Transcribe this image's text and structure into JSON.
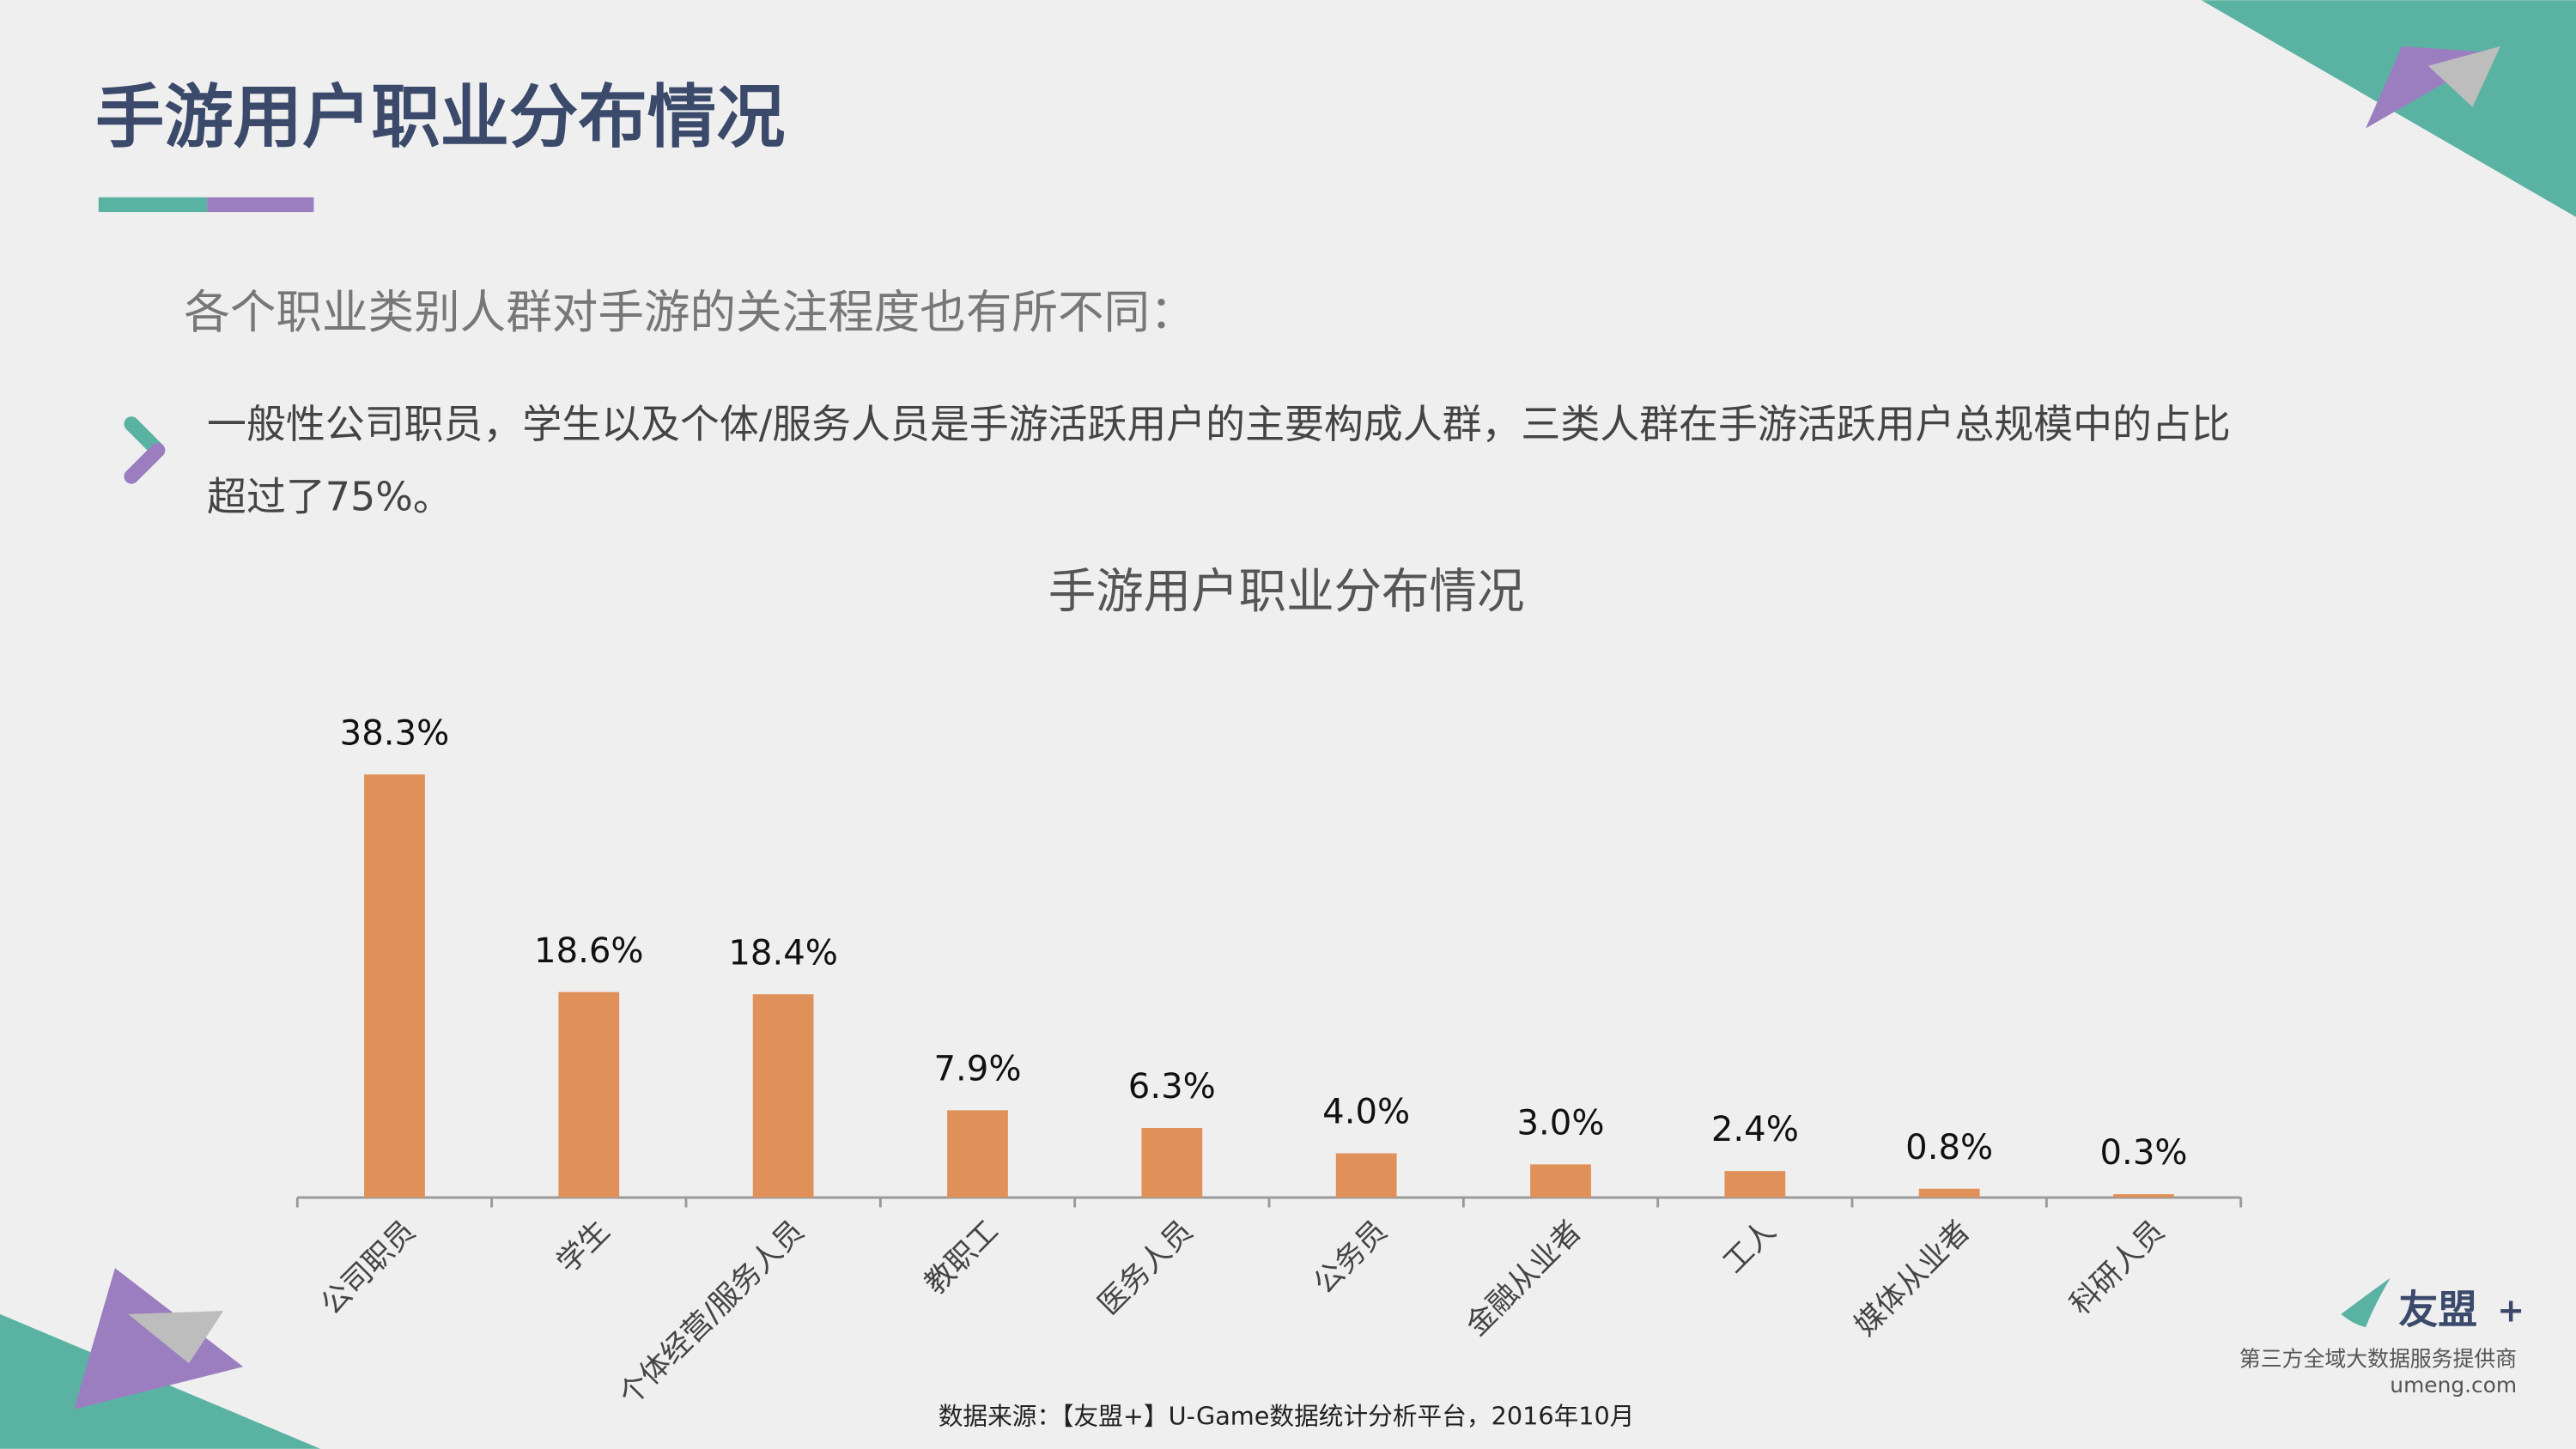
{
  "header": {
    "title": "手游用户职业分布情况"
  },
  "subtitle": "各个职业类别人群对手游的关注程度也有所不同：",
  "bullet": {
    "lines": [
      "一般性公司职员，学生以及个体/服务人员是手游活跃用户的主要构成人群，三类人群在手游活跃用户总规模中的占比",
      "超过了75%。"
    ]
  },
  "chart_data": {
    "type": "bar",
    "title": "手游用户职业分布情况",
    "categories": [
      "公司职员",
      "学生",
      "个体经营/服务人员",
      "教职工",
      "医务人员",
      "公务员",
      "金融从业者",
      "工人",
      "媒体从业者",
      "科研人员"
    ],
    "values": [
      38.3,
      18.6,
      18.4,
      7.9,
      6.3,
      4.0,
      3.0,
      2.4,
      0.8,
      0.3
    ],
    "value_labels": [
      "38.3%",
      "18.6%",
      "18.4%",
      "7.9%",
      "6.3%",
      "4.0%",
      "3.0%",
      "2.4%",
      "0.8%",
      "0.3%"
    ],
    "color": "#e0915a",
    "ylim": [
      0,
      40
    ]
  },
  "source": "数据来源：【友盟+】U-Game数据统计分析平台，2016年10月",
  "logo": {
    "name": "友盟",
    "plus": "+",
    "tagline": "第三方全域大数据服务提供商",
    "url": "umeng.com"
  }
}
